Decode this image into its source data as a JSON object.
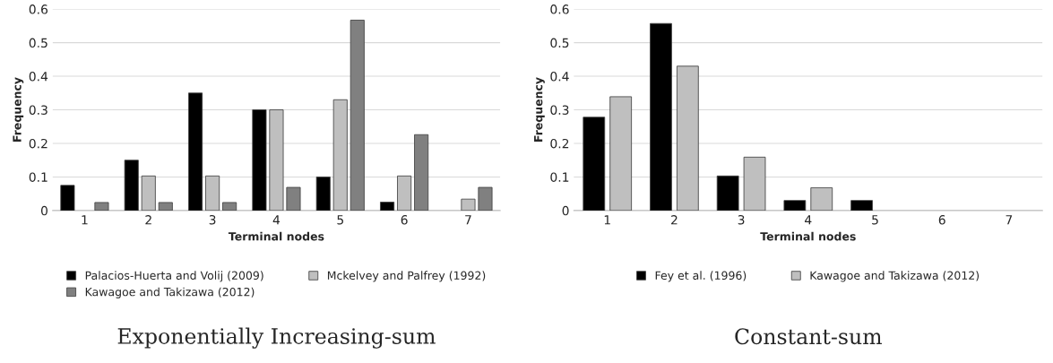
{
  "chart_data": [
    {
      "type": "bar",
      "title": "Exponentially Increasing-sum",
      "xlabel": "Terminal nodes",
      "ylabel": "Frequency",
      "categories": [
        "1",
        "2",
        "3",
        "4",
        "5",
        "6",
        "7"
      ],
      "series": [
        {
          "name": "Palacios-Huerta and Volij (2009)",
          "color": "#000000",
          "values": [
            0.075,
            0.15,
            0.35,
            0.3,
            0.1,
            0.025,
            0
          ]
        },
        {
          "name": "Mckelvey and Palfrey (1992)",
          "color": "#bfbfbf",
          "values": [
            0,
            0.103,
            0.103,
            0.3,
            0.33,
            0.103,
            0.034
          ]
        },
        {
          "name": "Kawagoe and Takizawa (2012)",
          "color": "#808080",
          "values": [
            0.024,
            0.024,
            0.024,
            0.069,
            0.567,
            0.226,
            0.069
          ]
        }
      ],
      "ylim": [
        0,
        0.6
      ],
      "yticks": [
        {
          "value": 0,
          "label": "0"
        },
        0.1,
        0.2,
        0.3,
        0.4,
        0.5,
        0.6
      ],
      "grid": "y",
      "legend": "bottom"
    },
    {
      "type": "bar",
      "title": "Constant-sum",
      "xlabel": "Terminal nodes",
      "ylabel": "Frequency",
      "categories": [
        "1",
        "2",
        "3",
        "4",
        "5",
        "6",
        "7"
      ],
      "series": [
        {
          "name": "Fey et al. (1996)",
          "color": "#000000",
          "values": [
            0.278,
            0.557,
            0.103,
            0.03,
            0.03,
            0,
            0
          ]
        },
        {
          "name": "Kawagoe and Takizawa (2012)",
          "color": "#bfbfbf",
          "values": [
            0.339,
            0.43,
            0.159,
            0.068,
            0,
            0,
            0
          ]
        }
      ],
      "ylim": [
        0,
        0.6
      ],
      "yticks": [
        {
          "value": 0,
          "label": "0"
        },
        0.1,
        0.2,
        0.3,
        0.4,
        0.5,
        0.6
      ],
      "grid": "y",
      "legend": "bottom"
    }
  ]
}
